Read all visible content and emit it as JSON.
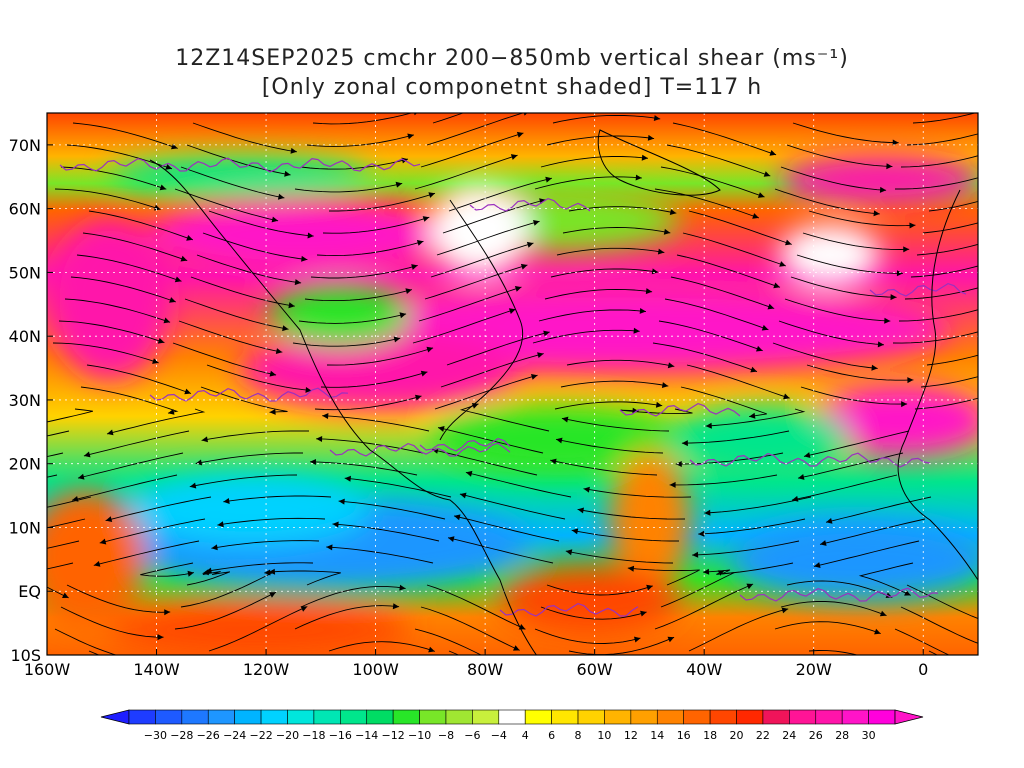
{
  "header": {
    "title_line1": "12Z14SEP2025 cmchr 200−850mb vertical shear (ms⁻¹)",
    "title_line2": "[Only zonal componetnt shaded] T=117 h"
  },
  "map": {
    "lat_labels": [
      "70N",
      "60N",
      "50N",
      "40N",
      "30N",
      "20N",
      "10N",
      "EQ",
      "10S"
    ],
    "lat_values": [
      70,
      60,
      50,
      40,
      30,
      20,
      10,
      0,
      -10
    ],
    "lon_labels": [
      "160W",
      "140W",
      "120W",
      "100W",
      "80W",
      "60W",
      "40W",
      "20W",
      "0"
    ],
    "lon_values": [
      -160,
      -140,
      -120,
      -100,
      -80,
      -60,
      -40,
      -20,
      0
    ],
    "lon_range": [
      -160,
      10
    ],
    "lat_range": [
      -10,
      75
    ],
    "shaded_field": "zonal shear component",
    "vector_style": "streamlines",
    "coastline_color": "#000000",
    "contour_color": "#9b30c0",
    "grid": "dotted"
  },
  "colorbar": {
    "labels": [
      "−30",
      "−28",
      "−26",
      "−24",
      "−22",
      "−20",
      "−18",
      "−16",
      "−14",
      "−12",
      "−10",
      "−8",
      "−6",
      "−4",
      "4",
      "6",
      "8",
      "10",
      "12",
      "14",
      "16",
      "18",
      "20",
      "22",
      "24",
      "26",
      "28",
      "30"
    ],
    "colors": [
      "#1e3cff",
      "#1e5aff",
      "#1e78ff",
      "#1e96ff",
      "#00b4ff",
      "#00d2ff",
      "#00e6dc",
      "#00e6b4",
      "#00e68c",
      "#00dc64",
      "#28e628",
      "#78e628",
      "#a0e632",
      "#c8f03c",
      "#ffffff",
      "#ffff00",
      "#ffe600",
      "#ffd200",
      "#ffb400",
      "#ffa000",
      "#ff8200",
      "#ff6400",
      "#ff4600",
      "#ff2800",
      "#f0145a",
      "#ff1496",
      "#ff14aa",
      "#ff14c8",
      "#ff00dc"
    ],
    "low_arrow_color": "#1e1eff",
    "high_arrow_color": "#ff14c8"
  }
}
